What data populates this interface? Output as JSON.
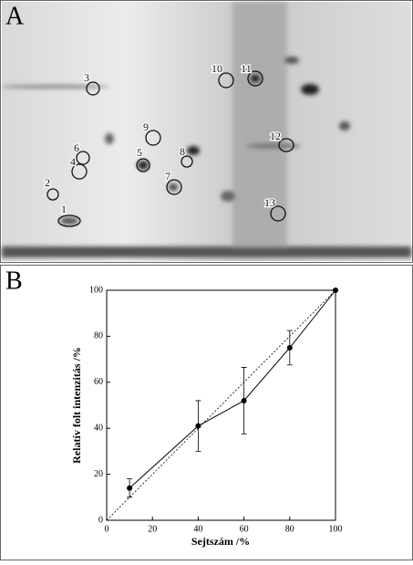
{
  "panel_a": {
    "label": "A",
    "spots": [
      "1",
      "2",
      "3",
      "4",
      "5",
      "6",
      "7",
      "8",
      "9",
      "10",
      "11",
      "12",
      "13"
    ]
  },
  "chart_data": {
    "type": "line",
    "panel_label": "B",
    "x_label": "Sejtszám /%",
    "y_label": "Relatív folt intenzitás /%",
    "x": [
      10,
      40,
      60,
      80,
      100
    ],
    "series": [
      {
        "color": "#000000",
        "values": [
          14,
          41,
          52,
          75,
          100
        ],
        "errors": [
          4,
          11,
          14.5,
          7.5,
          0
        ]
      }
    ],
    "reference_line": {
      "x": [
        0,
        100
      ],
      "y": [
        0,
        100
      ],
      "dashed": true
    },
    "xlim": [
      0,
      100
    ],
    "xticks": [
      0,
      20,
      40,
      60,
      80,
      100
    ],
    "ylim": [
      0,
      100
    ],
    "yticks": [
      0,
      20,
      40,
      60,
      80,
      100
    ]
  }
}
